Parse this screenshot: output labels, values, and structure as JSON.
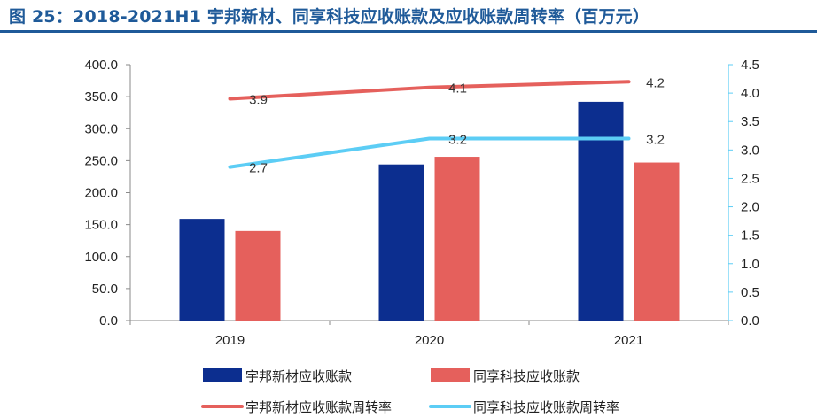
{
  "title": "图 25：2018-2021H1 宇邦新材、同享科技应收账款及应收账款周转率（百万元）",
  "colors": {
    "title": "#1f5a99",
    "bar_yubang": "#0c2e8f",
    "bar_tongxiang": "#e5605c",
    "line_yubang": "#e5605c",
    "line_tongxiang": "#5ccdf5",
    "axis": "#8a8a8a"
  },
  "chart_data": {
    "type": "bar",
    "categories": [
      "2019",
      "2020",
      "2021"
    ],
    "series": [
      {
        "name": "宇邦新材应收账款",
        "kind": "bar",
        "axis": "left",
        "values": [
          159,
          244,
          342
        ]
      },
      {
        "name": "同享科技应收账款",
        "kind": "bar",
        "axis": "left",
        "values": [
          140,
          256,
          247
        ]
      },
      {
        "name": "宇邦新材应收账款周转率",
        "kind": "line",
        "axis": "right",
        "values": [
          3.9,
          4.1,
          4.2
        ],
        "labels": [
          "3.9",
          "4.1",
          "4.2"
        ]
      },
      {
        "name": "同享科技应收账款周转率",
        "kind": "line",
        "axis": "right",
        "values": [
          2.7,
          3.2,
          3.2
        ],
        "labels": [
          "2.7",
          "3.2",
          "3.2"
        ]
      }
    ],
    "y_left": {
      "min": 0,
      "max": 400,
      "step": 50,
      "ticks": [
        "0.0",
        "50.0",
        "100.0",
        "150.0",
        "200.0",
        "250.0",
        "300.0",
        "350.0",
        "400.0"
      ]
    },
    "y_right": {
      "min": 0,
      "max": 4.5,
      "step": 0.5,
      "ticks": [
        "0.0",
        "0.5",
        "1.0",
        "1.5",
        "2.0",
        "2.5",
        "3.0",
        "3.5",
        "4.0",
        "4.5"
      ]
    },
    "legend_position": "bottom",
    "grid": false
  }
}
